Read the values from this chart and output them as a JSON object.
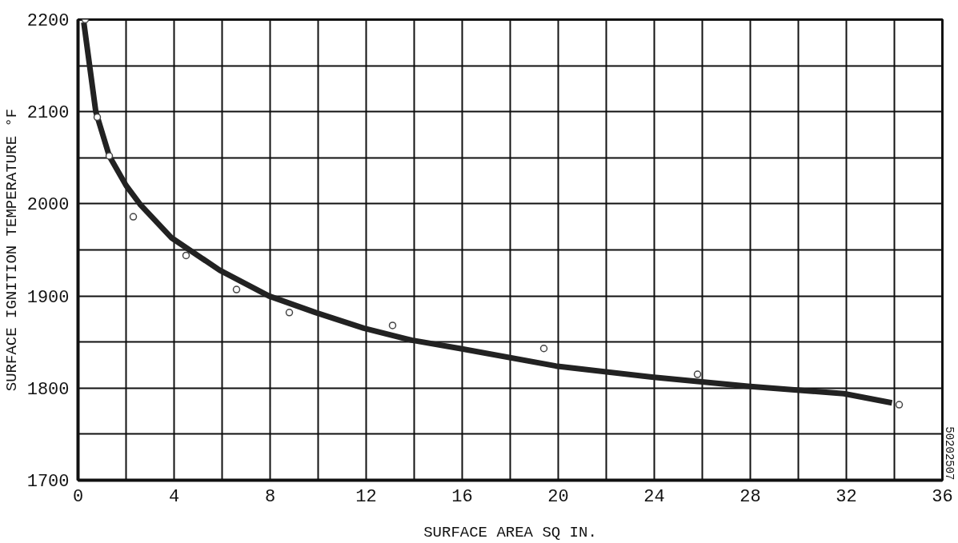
{
  "chart_data": {
    "type": "scatter",
    "xlabel": "SURFACE AREA SQ IN.",
    "ylabel": "SURFACE IGNITION TEMPERATURE °F",
    "annotations": [
      "50202507"
    ],
    "xlim": [
      0,
      36
    ],
    "ylim": [
      1700,
      2200
    ],
    "xticks": [
      0,
      {
        "value": 2,
        "label": null
      },
      4,
      {
        "value": 6,
        "label": null
      },
      8,
      {
        "value": 10,
        "label": null
      },
      12,
      {
        "value": 14,
        "label": null
      },
      16,
      {
        "value": 18,
        "label": null
      },
      20,
      {
        "value": 22,
        "label": null
      },
      24,
      {
        "value": 26,
        "label": null
      },
      28,
      {
        "value": 30,
        "label": null
      },
      32,
      {
        "value": 34,
        "label": null
      },
      36
    ],
    "yticks": [
      1700,
      {
        "value": 1750,
        "label": null
      },
      1800,
      {
        "value": 1850,
        "label": null
      },
      1900,
      {
        "value": 1950,
        "label": null
      },
      2000,
      {
        "value": 2050,
        "label": null
      },
      2100,
      {
        "value": 2150,
        "label": null
      },
      2200
    ],
    "grid": true,
    "series": [
      {
        "type": "line",
        "color": "#222222",
        "marker": "none",
        "line_style": "solid",
        "x": [
          0.24,
          0.74,
          1.3,
          2.0,
          2.6,
          3.9,
          5.9,
          7.95,
          9.9,
          11.9,
          13.9,
          15.9,
          19.9,
          23.9,
          27.9,
          31.9,
          33.9
        ],
        "values": [
          2197,
          2100,
          2052,
          2020,
          1999,
          1963,
          1928,
          1900,
          1882,
          1865,
          1852,
          1843,
          1824,
          1812,
          1802,
          1794,
          1784
        ]
      },
      {
        "color": "#444444",
        "marker": "circle",
        "x": [
          0.3,
          0.8,
          1.3,
          2.3,
          4.5,
          6.6,
          8.8,
          13.1,
          19.4,
          25.8,
          34.2
        ],
        "values": [
          2200,
          2094,
          2052,
          1986,
          1944,
          1907,
          1882,
          1868,
          1843,
          1815,
          1782
        ]
      }
    ]
  }
}
